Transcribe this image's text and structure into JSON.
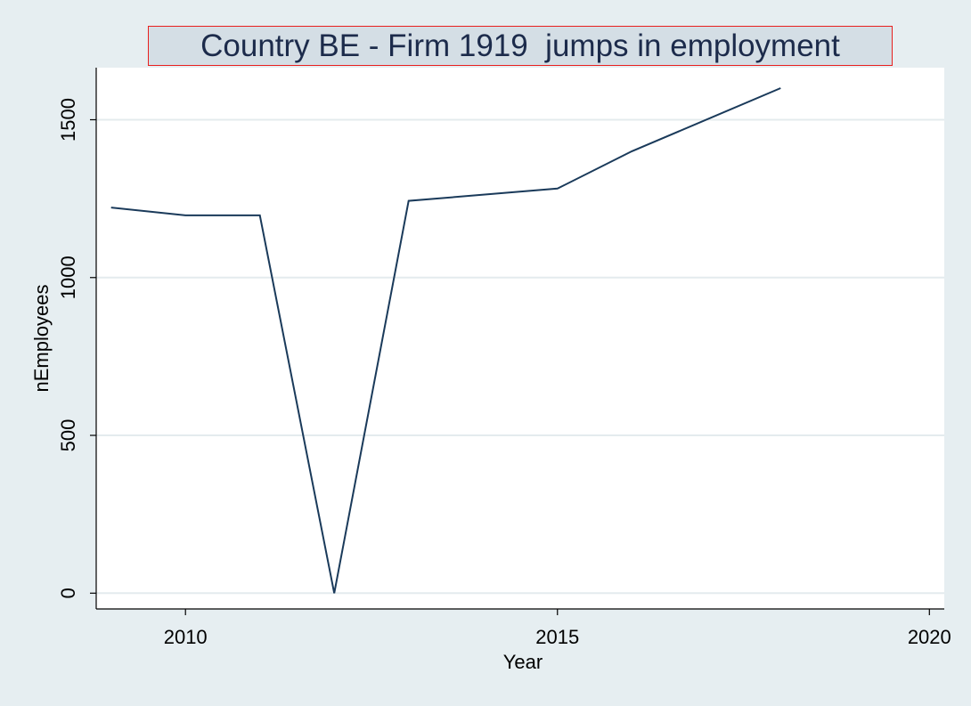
{
  "chart_data": {
    "type": "line",
    "title": "Country BE - Firm 1919  jumps in employment",
    "xlabel": "Year",
    "ylabel": "nEmployees",
    "x_ticks": [
      2010,
      2015,
      2020
    ],
    "y_ticks": [
      0,
      500,
      1000,
      1500
    ],
    "xlim": [
      2008.8,
      2020.2
    ],
    "ylim": [
      -50,
      1665
    ],
    "grid": "horizontal",
    "legend": "none",
    "line_color": "#1a3a5a",
    "x": [
      2009,
      2010,
      2011,
      2012,
      2013,
      2015,
      2016,
      2018
    ],
    "y": [
      1222,
      1197,
      1197,
      0,
      1243,
      1282,
      1400,
      1600
    ]
  }
}
